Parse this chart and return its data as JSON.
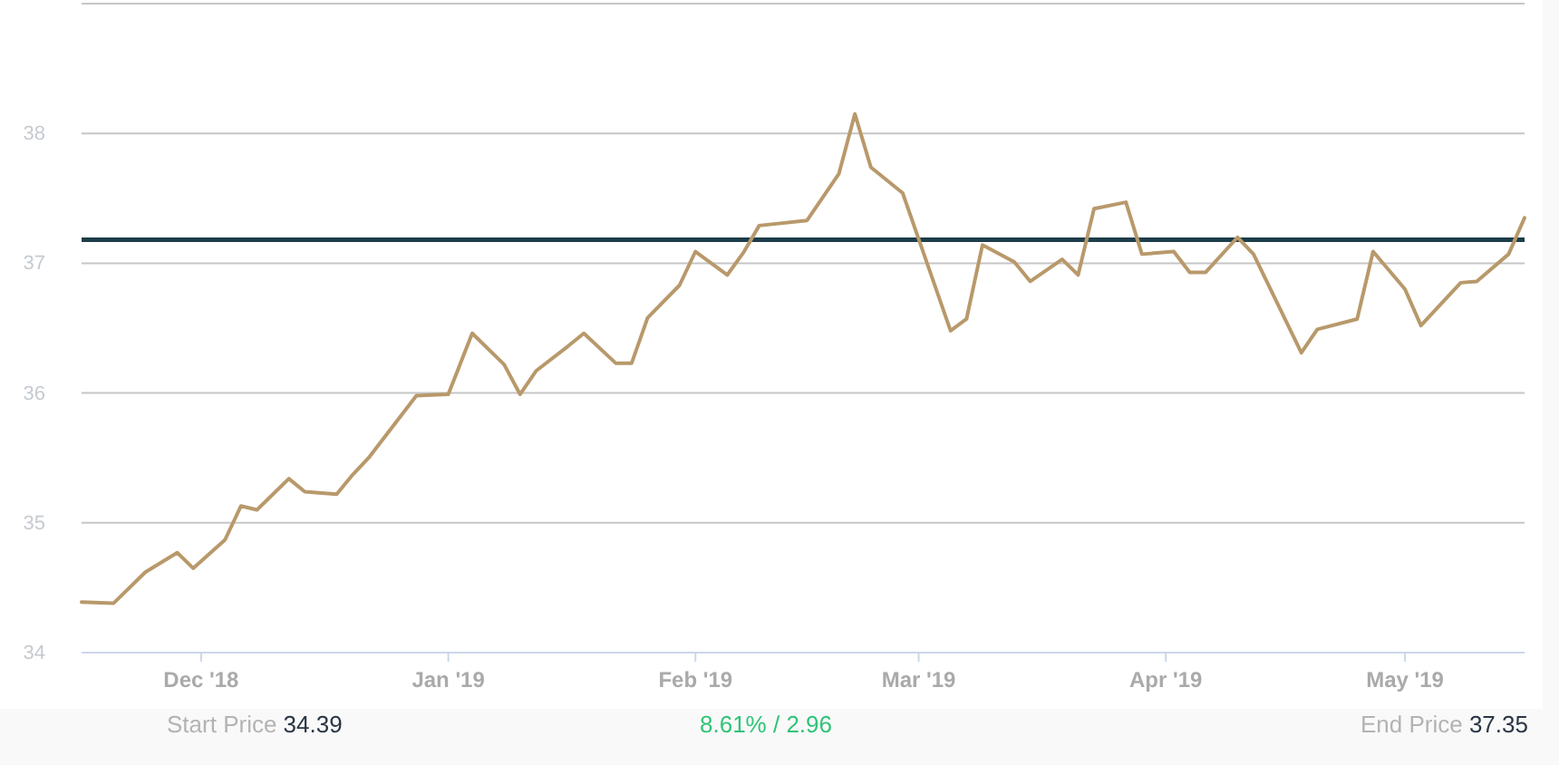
{
  "chart_data": {
    "type": "line",
    "color": "#b8996b",
    "x": [
      "2018-11-16",
      "2018-11-20",
      "2018-11-24",
      "2018-11-28",
      "2018-11-30",
      "2018-12-04",
      "2018-12-06",
      "2018-12-08",
      "2018-12-12",
      "2018-12-14",
      "2018-12-18",
      "2018-12-20",
      "2018-12-22",
      "2018-12-28",
      "2019-01-01",
      "2019-01-04",
      "2019-01-08",
      "2019-01-10",
      "2019-01-12",
      "2019-01-16",
      "2019-01-18",
      "2019-01-22",
      "2019-01-24",
      "2019-01-26",
      "2019-01-30",
      "2019-02-01",
      "2019-02-05",
      "2019-02-07",
      "2019-02-09",
      "2019-02-15",
      "2019-02-19",
      "2019-02-21",
      "2019-02-23",
      "2019-02-27",
      "2019-03-05",
      "2019-03-07",
      "2019-03-09",
      "2019-03-13",
      "2019-03-15",
      "2019-03-19",
      "2019-03-21",
      "2019-03-23",
      "2019-03-27",
      "2019-03-29",
      "2019-04-02",
      "2019-04-04",
      "2019-04-06",
      "2019-04-10",
      "2019-04-12",
      "2019-04-18",
      "2019-04-20",
      "2019-04-25",
      "2019-04-27",
      "2019-05-01",
      "2019-05-03",
      "2019-05-08",
      "2019-05-10",
      "2019-05-14",
      "2019-05-16"
    ],
    "values": [
      34.39,
      34.38,
      34.62,
      34.77,
      34.65,
      34.87,
      35.13,
      35.1,
      35.34,
      35.24,
      35.22,
      35.37,
      35.5,
      35.98,
      35.99,
      36.46,
      36.22,
      35.99,
      36.17,
      36.36,
      36.46,
      36.23,
      36.23,
      36.58,
      36.83,
      37.09,
      36.91,
      37.08,
      37.29,
      37.33,
      37.69,
      38.15,
      37.74,
      37.54,
      36.48,
      36.57,
      37.14,
      37.01,
      36.86,
      37.03,
      36.91,
      37.42,
      37.47,
      37.07,
      37.09,
      36.93,
      36.93,
      37.2,
      37.07,
      36.31,
      36.49,
      36.57,
      37.09,
      36.8,
      36.52,
      36.85,
      36.86,
      37.07,
      37.35
    ],
    "xlim": [
      "2018-11-16",
      "2019-05-16"
    ],
    "xticks": [
      {
        "value": "2018-12-01",
        "label": "Dec '18"
      },
      {
        "value": "2019-01-01",
        "label": "Jan '19"
      },
      {
        "value": "2019-02-01",
        "label": "Feb '19"
      },
      {
        "value": "2019-03-01",
        "label": "Mar '19"
      },
      {
        "value": "2019-04-01",
        "label": "Apr '19"
      },
      {
        "value": "2019-05-01",
        "label": "May '19"
      }
    ],
    "ylim": [
      34,
      39
    ],
    "yticks": [
      34,
      35,
      36,
      37,
      38,
      {
        "value": 39,
        "label": null
      }
    ],
    "grid": "y",
    "ref_lines": [
      {
        "axis": "y",
        "value": 37.18,
        "color": "#1e3d4a"
      }
    ],
    "annotations": [
      "Start Price 34.39",
      "8.61% / 2.96",
      "End Price 37.35"
    ]
  }
}
